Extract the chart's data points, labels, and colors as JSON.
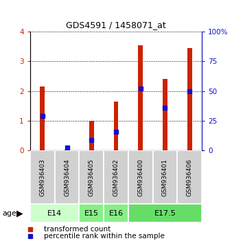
{
  "title": "GDS4591 / 1458071_at",
  "samples": [
    "GSM936403",
    "GSM936404",
    "GSM936405",
    "GSM936402",
    "GSM936400",
    "GSM936401",
    "GSM936406"
  ],
  "transformed_count": [
    2.15,
    0.04,
    1.0,
    1.65,
    3.55,
    2.4,
    3.45
  ],
  "percentile_rank_pct": [
    29,
    2.5,
    9,
    16,
    52,
    36,
    50
  ],
  "age_groups": [
    {
      "label": "E14",
      "samples": [
        0,
        1
      ],
      "color": "#ccffcc"
    },
    {
      "label": "E15",
      "samples": [
        2
      ],
      "color": "#88ee88"
    },
    {
      "label": "E16",
      "samples": [
        3
      ],
      "color": "#88ee88"
    },
    {
      "label": "E17.5",
      "samples": [
        4,
        5,
        6
      ],
      "color": "#66dd66"
    }
  ],
  "bar_color": "#cc2200",
  "percentile_color": "#1111cc",
  "ylim_left": [
    0,
    4
  ],
  "ylim_right": [
    0,
    100
  ],
  "yticks_left": [
    0,
    1,
    2,
    3,
    4
  ],
  "yticks_right": [
    0,
    25,
    50,
    75,
    100
  ],
  "bar_width": 0.55,
  "percentile_marker_size": 5,
  "bg_gray": "#d0d0d0",
  "legend_red_label": "transformed count",
  "legend_blue_label": "percentile rank within the sample"
}
